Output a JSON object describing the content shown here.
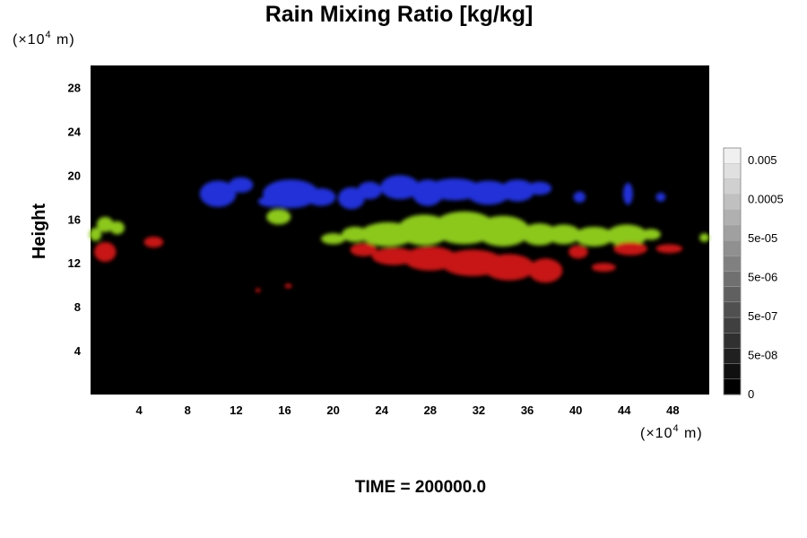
{
  "chart_data": {
    "type": "heatmap",
    "title": "Rain Mixing Ratio [kg/kg]",
    "ylabel": "Height",
    "xunit": "(×10",
    "xunit_exp": "4",
    "xunit_tail": " m)",
    "yunit": "(×10",
    "yunit_exp": "4",
    "yunit_tail": " m)",
    "xlim": [
      0,
      51
    ],
    "ylim": [
      0,
      30
    ],
    "xticks": [
      "4",
      "8",
      "12",
      "16",
      "20",
      "24",
      "28",
      "32",
      "36",
      "40",
      "44",
      "48"
    ],
    "yticks": [
      "4",
      "8",
      "12",
      "16",
      "20",
      "24",
      "28"
    ],
    "background": "#000000",
    "colorbar": {
      "labels": [
        "0.005",
        "0.0005",
        "5e-05",
        "5e-06",
        "5e-07",
        "5e-08",
        "0"
      ],
      "steps": 16
    },
    "bands": [
      {
        "layer": "upper",
        "color": "#2432d8",
        "blobs": [
          [
            10.5,
            18.3,
            1.5,
            1.2
          ],
          [
            12.4,
            19.1,
            1.0,
            0.7
          ],
          [
            16.5,
            18.3,
            2.3,
            1.3
          ],
          [
            19.0,
            18.0,
            1.2,
            0.8
          ],
          [
            15.0,
            17.6,
            1.2,
            0.5
          ],
          [
            21.5,
            17.9,
            1.1,
            1.0
          ],
          [
            23.0,
            18.6,
            1.0,
            0.8
          ],
          [
            25.5,
            18.9,
            1.6,
            1.1
          ],
          [
            27.8,
            18.4,
            1.3,
            1.2
          ],
          [
            30.0,
            18.7,
            2.2,
            1.0
          ],
          [
            32.8,
            18.4,
            1.8,
            1.1
          ],
          [
            35.2,
            18.6,
            1.4,
            1.0
          ],
          [
            37.0,
            18.8,
            1.0,
            0.6
          ],
          [
            40.3,
            18.0,
            0.5,
            0.5
          ],
          [
            44.3,
            18.3,
            0.4,
            1.0
          ],
          [
            47.0,
            18.0,
            0.4,
            0.4
          ]
        ]
      },
      {
        "layer": "middle",
        "color": "#8cc81e",
        "blobs": [
          [
            0.4,
            14.6,
            0.5,
            0.6
          ],
          [
            1.2,
            15.5,
            0.7,
            0.7
          ],
          [
            2.2,
            15.2,
            0.6,
            0.6
          ],
          [
            15.5,
            16.2,
            1.0,
            0.7
          ],
          [
            20.0,
            14.2,
            1.0,
            0.5
          ],
          [
            21.8,
            14.6,
            1.1,
            0.7
          ],
          [
            24.5,
            14.6,
            2.3,
            1.1
          ],
          [
            27.5,
            15.0,
            2.2,
            1.4
          ],
          [
            30.8,
            15.2,
            2.6,
            1.5
          ],
          [
            34.0,
            14.9,
            2.2,
            1.4
          ],
          [
            37.0,
            14.6,
            1.5,
            1.0
          ],
          [
            39.0,
            14.6,
            1.4,
            0.9
          ],
          [
            41.5,
            14.4,
            1.6,
            0.9
          ],
          [
            44.2,
            14.5,
            1.7,
            1.0
          ],
          [
            46.2,
            14.6,
            0.8,
            0.5
          ],
          [
            50.6,
            14.3,
            0.4,
            0.4
          ]
        ]
      },
      {
        "layer": "lower",
        "color": "#c81212",
        "blobs": [
          [
            1.2,
            13.0,
            0.9,
            0.9
          ],
          [
            5.2,
            13.9,
            0.8,
            0.5
          ],
          [
            13.8,
            9.5,
            0.2,
            0.2
          ],
          [
            16.3,
            9.9,
            0.3,
            0.2
          ],
          [
            22.5,
            13.2,
            1.1,
            0.6
          ],
          [
            25.0,
            12.6,
            1.8,
            0.8
          ],
          [
            28.0,
            12.4,
            2.2,
            1.1
          ],
          [
            31.5,
            12.0,
            2.6,
            1.2
          ],
          [
            34.5,
            11.6,
            2.1,
            1.2
          ],
          [
            37.5,
            11.3,
            1.4,
            1.1
          ],
          [
            40.2,
            13.0,
            0.8,
            0.6
          ],
          [
            42.3,
            11.6,
            1.0,
            0.4
          ],
          [
            44.5,
            13.3,
            1.4,
            0.6
          ],
          [
            47.7,
            13.3,
            1.1,
            0.4
          ]
        ]
      }
    ]
  },
  "footer": {
    "time_label": "TIME = 200000.0"
  }
}
